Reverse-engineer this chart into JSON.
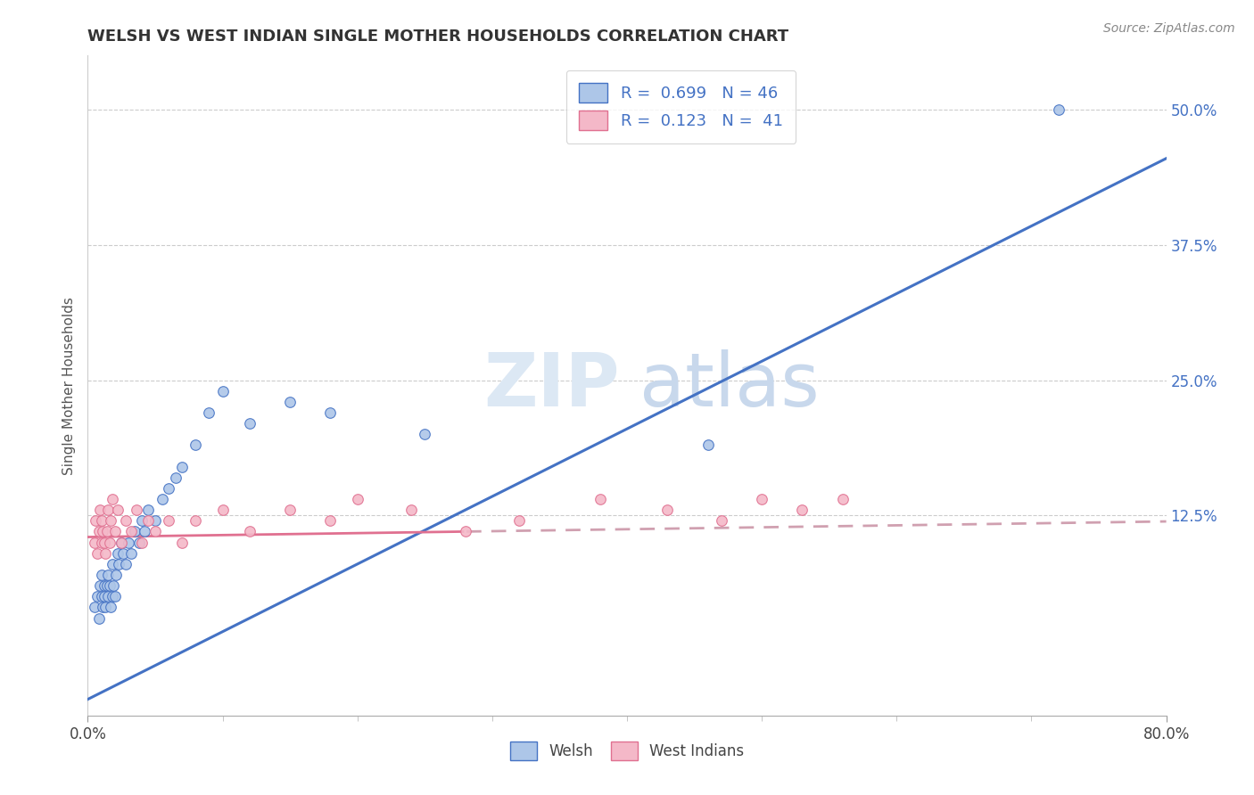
{
  "title": "WELSH VS WEST INDIAN SINGLE MOTHER HOUSEHOLDS CORRELATION CHART",
  "source": "Source: ZipAtlas.com",
  "ylabel": "Single Mother Households",
  "legend_welsh_R": "0.699",
  "legend_welsh_N": "46",
  "legend_wi_R": "0.123",
  "legend_wi_N": "41",
  "welsh_color": "#adc6e8",
  "welsh_edge_color": "#4472c4",
  "wi_color": "#f4b8c8",
  "wi_edge_color": "#e07090",
  "welsh_line_color": "#4472c4",
  "wi_line_solid_color": "#e07090",
  "wi_line_dash_color": "#d0a0b0",
  "watermark_zip_color": "#dce8f4",
  "watermark_atlas_color": "#c8d8ec",
  "background_color": "#ffffff",
  "grid_color": "#cccccc",
  "xlim": [
    0.0,
    0.8
  ],
  "ylim": [
    -0.06,
    0.55
  ],
  "ytick_vals": [
    0.125,
    0.25,
    0.375,
    0.5
  ],
  "ytick_labels": [
    "12.5%",
    "25.0%",
    "37.5%",
    "50.0%"
  ],
  "welsh_slope": 0.625,
  "welsh_intercept": -0.045,
  "wi_slope": 0.018,
  "wi_intercept": 0.105,
  "welsh_x": [
    0.005,
    0.007,
    0.008,
    0.009,
    0.01,
    0.01,
    0.011,
    0.012,
    0.012,
    0.013,
    0.014,
    0.015,
    0.015,
    0.016,
    0.017,
    0.018,
    0.018,
    0.019,
    0.02,
    0.021,
    0.022,
    0.023,
    0.025,
    0.026,
    0.028,
    0.03,
    0.032,
    0.035,
    0.038,
    0.04,
    0.042,
    0.045,
    0.05,
    0.055,
    0.06,
    0.065,
    0.07,
    0.08,
    0.09,
    0.1,
    0.12,
    0.15,
    0.18,
    0.25,
    0.46,
    0.72
  ],
  "welsh_y": [
    0.04,
    0.05,
    0.03,
    0.06,
    0.05,
    0.07,
    0.04,
    0.06,
    0.05,
    0.04,
    0.06,
    0.05,
    0.07,
    0.06,
    0.04,
    0.05,
    0.08,
    0.06,
    0.05,
    0.07,
    0.09,
    0.08,
    0.1,
    0.09,
    0.08,
    0.1,
    0.09,
    0.11,
    0.1,
    0.12,
    0.11,
    0.13,
    0.12,
    0.14,
    0.15,
    0.16,
    0.17,
    0.19,
    0.22,
    0.24,
    0.21,
    0.23,
    0.22,
    0.2,
    0.19,
    0.5
  ],
  "wi_x": [
    0.005,
    0.006,
    0.007,
    0.008,
    0.009,
    0.01,
    0.01,
    0.011,
    0.012,
    0.013,
    0.014,
    0.015,
    0.016,
    0.017,
    0.018,
    0.02,
    0.022,
    0.025,
    0.028,
    0.032,
    0.036,
    0.04,
    0.045,
    0.05,
    0.06,
    0.07,
    0.08,
    0.1,
    0.12,
    0.15,
    0.18,
    0.2,
    0.24,
    0.28,
    0.32,
    0.38,
    0.43,
    0.47,
    0.5,
    0.53,
    0.56
  ],
  "wi_y": [
    0.1,
    0.12,
    0.09,
    0.11,
    0.13,
    0.1,
    0.12,
    0.11,
    0.1,
    0.09,
    0.11,
    0.13,
    0.1,
    0.12,
    0.14,
    0.11,
    0.13,
    0.1,
    0.12,
    0.11,
    0.13,
    0.1,
    0.12,
    0.11,
    0.12,
    0.1,
    0.12,
    0.13,
    0.11,
    0.13,
    0.12,
    0.14,
    0.13,
    0.11,
    0.12,
    0.14,
    0.13,
    0.12,
    0.14,
    0.13,
    0.14
  ]
}
